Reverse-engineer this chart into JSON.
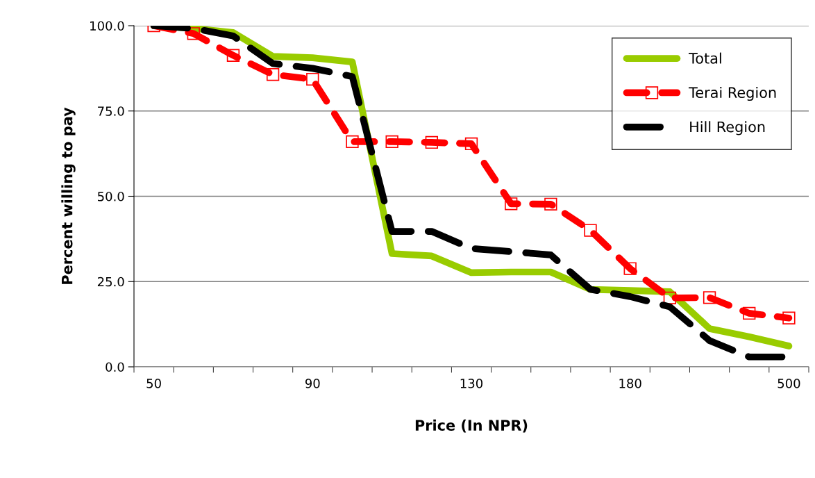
{
  "chart_data": {
    "type": "line",
    "xlabel": "Price (In NPR)",
    "ylabel": "Percent willing to pay",
    "categories": [
      "50",
      null,
      null,
      null,
      "90",
      null,
      null,
      null,
      "130",
      null,
      null,
      null,
      "180",
      null,
      null,
      null,
      "500"
    ],
    "series": [
      {
        "name": "Total",
        "color": "#99cc00",
        "line_style": "solid",
        "marker": "none",
        "values": [
          100,
          99.2,
          98,
          91,
          90.6,
          89.4,
          33.2,
          32.5,
          27.6,
          27.8,
          27.8,
          22.7,
          22.4,
          22.0,
          11.2,
          8.8,
          6.1
        ]
      },
      {
        "name": "Terai Region",
        "color": "#ff0000",
        "line_style": "dashed",
        "marker": "square",
        "values": [
          100,
          97.7,
          91.3,
          85.7,
          84.3,
          66,
          66,
          65.8,
          65.4,
          47.8,
          47.7,
          40.0,
          28.8,
          20.2,
          20.3,
          15.7,
          14.3
        ]
      },
      {
        "name": "Hill Region",
        "color": "#000000",
        "line_style": "longdash",
        "marker": "none",
        "values": [
          100,
          99.2,
          97.0,
          88.9,
          87.5,
          85.1,
          39.7,
          39.7,
          34.7,
          33.8,
          32.8,
          22.7,
          20.6,
          17.6,
          7.7,
          2.9,
          2.9
        ]
      }
    ],
    "ylim": [
      0,
      100
    ],
    "yticks": [
      {
        "value": 0,
        "label": "0.0"
      },
      {
        "value": 25,
        "label": "25.0"
      },
      {
        "value": 50,
        "label": "50.0"
      },
      {
        "value": 75,
        "label": "75.0"
      },
      {
        "value": 100,
        "label": "100.0"
      }
    ],
    "grid": "y",
    "legend": "top right"
  }
}
